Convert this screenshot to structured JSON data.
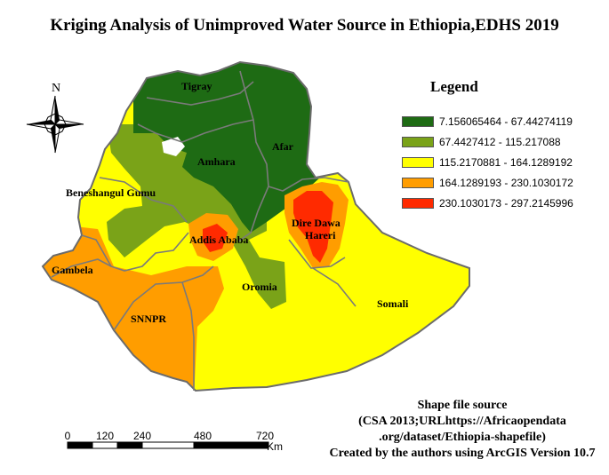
{
  "title": "Kriging Analysis of Unimproved Water Source in Ethiopia,EDHS 2019",
  "legend": {
    "title": "Legend",
    "items": [
      {
        "label": "7.156065464 - 67.44274119",
        "color": "#1e6b14"
      },
      {
        "label": "67.4427412 - 115.217088",
        "color": "#7aa318"
      },
      {
        "label": "115.2170881 - 164.1289192",
        "color": "#ffff00"
      },
      {
        "label": "164.1289193 - 230.1030172",
        "color": "#ff9d00"
      },
      {
        "label": "230.1030173 - 297.2145996",
        "color": "#ff2a00"
      }
    ]
  },
  "regions": {
    "tigray": "Tigray",
    "afar": "Afar",
    "amhara": "Amhara",
    "benishangul": "Beneshangul Gumu",
    "dire_dawa": "Dire Dawa",
    "harari": "Hareri",
    "addis": "Addis Ababa",
    "gambela": "Gambela",
    "oromia": "Oromia",
    "snnpr": "SNNPR",
    "somali": "Somali"
  },
  "north_arrow": {
    "label": "N",
    "icon": "compass-rose-icon"
  },
  "scale_bar": {
    "ticks": [
      "0",
      "120",
      "240",
      "480",
      "720"
    ],
    "unit": "Km"
  },
  "source": {
    "line1": "Shape file source",
    "line2": "(CSA 2013;URLhttps://Africaopendata",
    "line3": ".org/dataset/Ethiopia-shapefile)",
    "line4": "Created by the authors using ArcGIS Version 10.7"
  }
}
